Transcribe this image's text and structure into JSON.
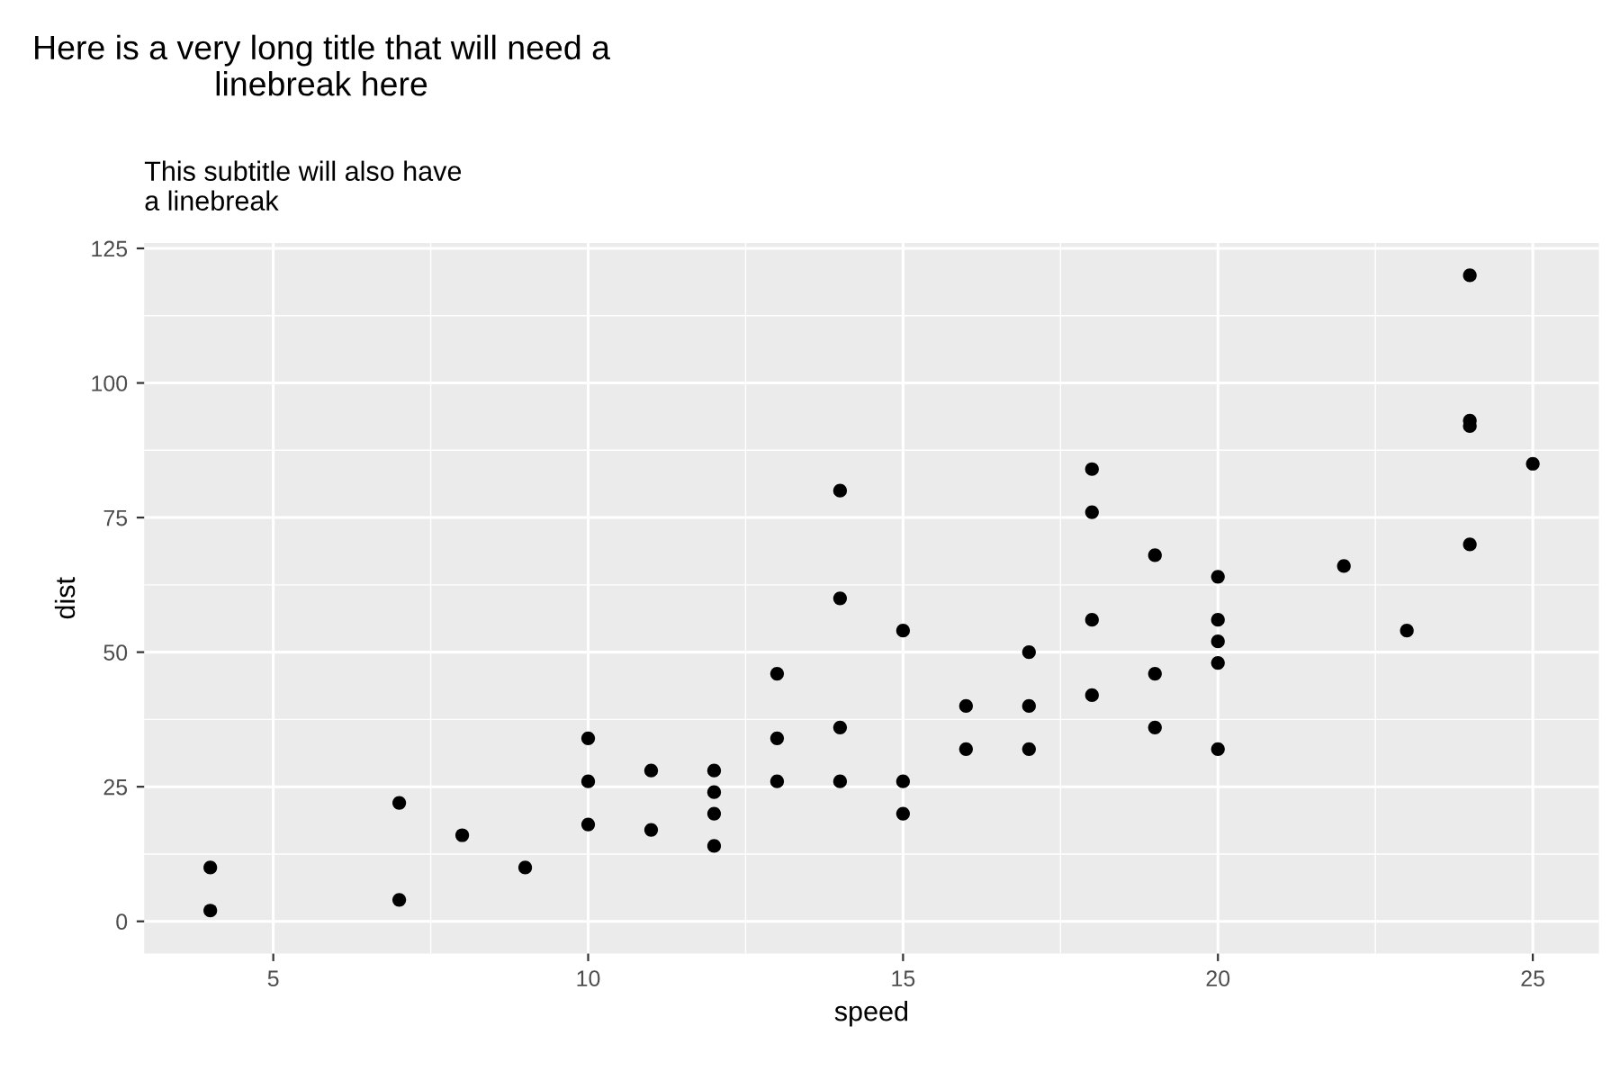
{
  "chart_data": {
    "type": "scatter",
    "title": "Here is a very long title that will need a\nlinebreak here",
    "subtitle": "This subtitle will also have\na linebreak",
    "xlabel": "speed",
    "ylabel": "dist",
    "x": [
      4,
      4,
      7,
      7,
      8,
      9,
      10,
      10,
      10,
      11,
      11,
      12,
      12,
      12,
      12,
      13,
      13,
      13,
      14,
      14,
      14,
      14,
      15,
      15,
      15,
      16,
      16,
      17,
      17,
      17,
      18,
      18,
      18,
      18,
      19,
      19,
      19,
      20,
      20,
      20,
      20,
      20,
      22,
      23,
      24,
      24,
      24,
      24,
      25
    ],
    "series": [
      {
        "color": "#000000",
        "values": [
          2,
          10,
          4,
          22,
          16,
          10,
          18,
          26,
          34,
          17,
          28,
          14,
          20,
          24,
          28,
          26,
          34,
          46,
          26,
          36,
          60,
          80,
          20,
          26,
          54,
          32,
          40,
          32,
          40,
          50,
          42,
          56,
          76,
          84,
          36,
          46,
          68,
          32,
          48,
          52,
          56,
          64,
          66,
          54,
          70,
          92,
          93,
          120,
          85
        ]
      }
    ],
    "xlim": [
      2.95,
      26.05
    ],
    "ylim": [
      -6,
      126
    ],
    "xticks": [
      5,
      10,
      15,
      20,
      25
    ],
    "yticks": [
      0,
      25,
      50,
      75,
      100,
      125
    ],
    "grid": true,
    "marker": "circle"
  }
}
